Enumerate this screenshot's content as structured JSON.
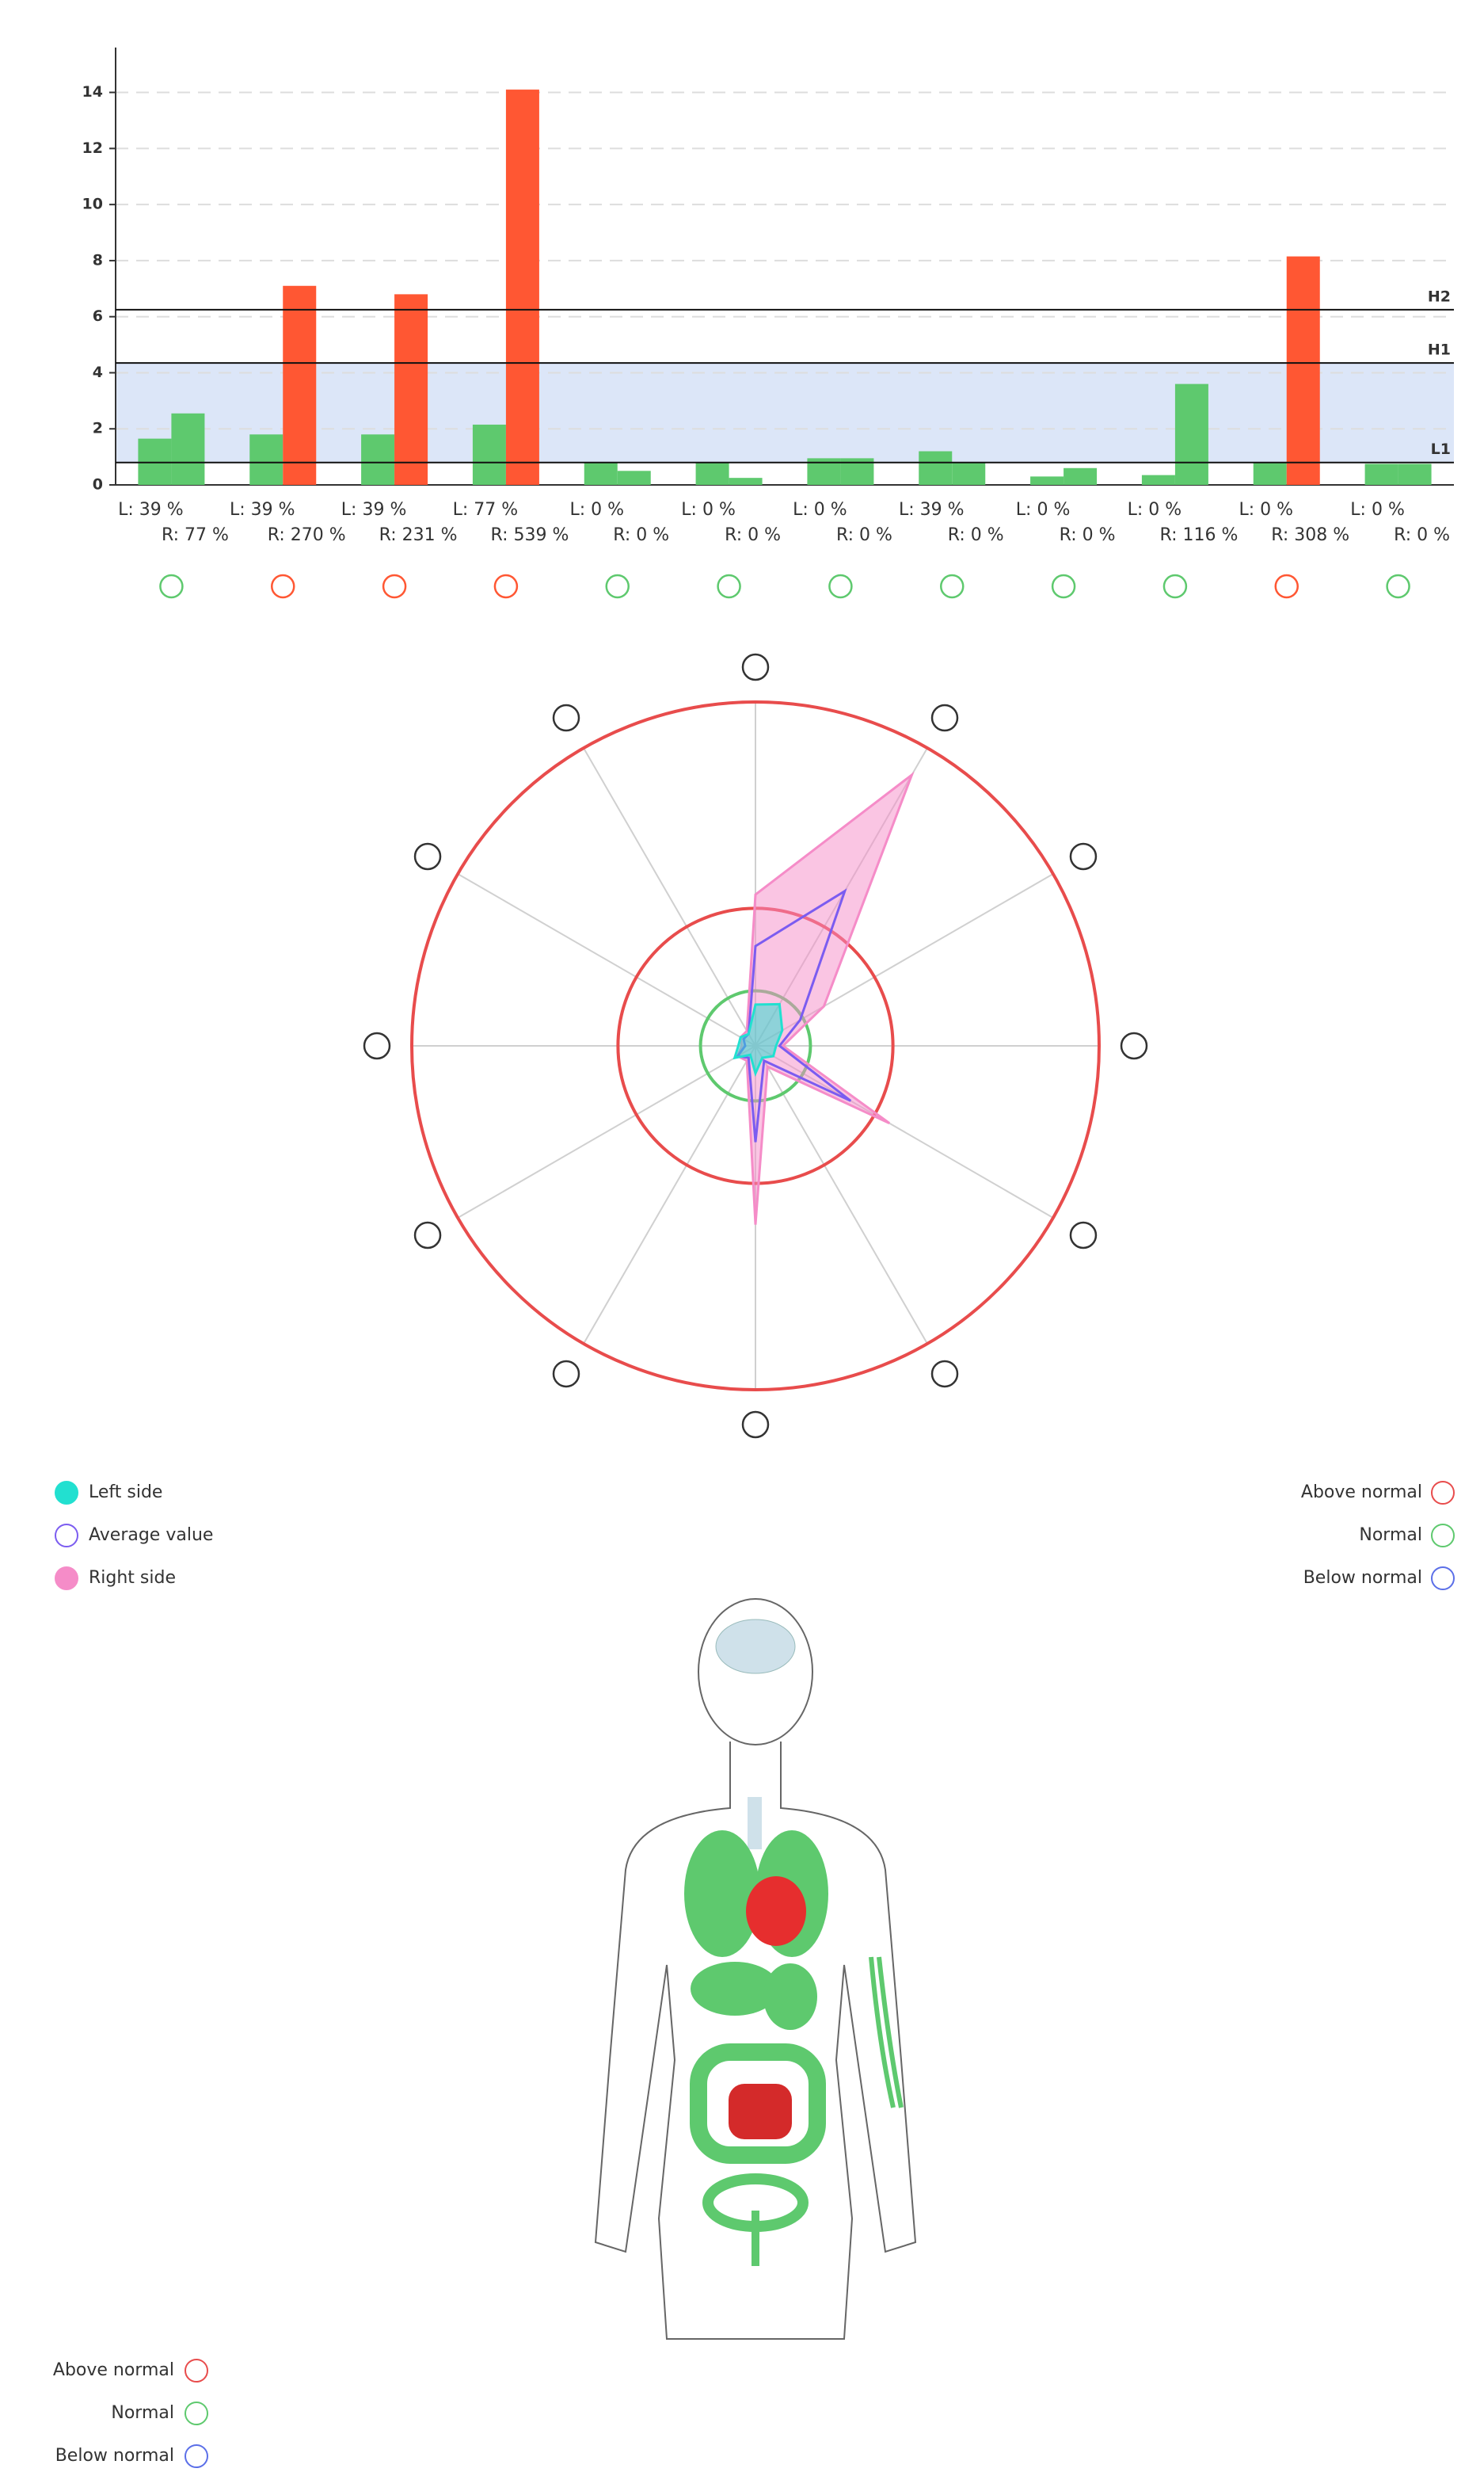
{
  "chart_data": [
    {
      "type": "bar",
      "categories": [
        null,
        null,
        null,
        null,
        null,
        null,
        null,
        null,
        null,
        null,
        null,
        null
      ],
      "series": [
        {
          "color": "#5ec96e",
          "values": [
            1.65,
            1.8,
            1.8,
            2.15,
            0.8,
            0.8,
            0.95,
            1.2,
            0.3,
            0.35,
            0.8,
            0.75
          ]
        },
        {
          "colors": [
            "#5ec96e",
            "#ff5733",
            "#ff5733",
            "#ff5733",
            "#5ec96e",
            "#5ec96e",
            "#5ec96e",
            "#5ec96e",
            "#5ec96e",
            "#5ec96e",
            "#ff5733",
            "#5ec96e"
          ],
          "values": [
            2.55,
            7.1,
            6.8,
            14.1,
            0.5,
            0.25,
            0.95,
            0.8,
            0.6,
            3.6,
            8.15,
            0.75
          ]
        }
      ],
      "left_annotations": [
        "L: 39 %",
        "L: 39 %",
        "L: 39 %",
        "L: 77 %",
        "L: 0 %",
        "L: 0 %",
        "L: 0 %",
        "L: 39 %",
        "L: 0 %",
        "L: 0 %",
        "L: 0 %",
        "L: 0 %"
      ],
      "right_annotations": [
        "R: 77 %",
        "R: 270 %",
        "R: 231 %",
        "R: 539 %",
        "R: 0 %",
        "R: 0 %",
        "R: 0 %",
        "R: 0 %",
        "R: 0 %",
        "R: 116 %",
        "R: 308 %",
        "R: 0 %"
      ],
      "ylim": [
        0,
        15.6
      ],
      "yticks": [
        0,
        2,
        4,
        6,
        8,
        10,
        12,
        14
      ],
      "grid": true,
      "reference_lines": [
        {
          "label": "H2",
          "value": 6.25
        },
        {
          "label": "H1",
          "value": 4.35
        },
        {
          "label": "L1",
          "value": 0.8
        }
      ],
      "band_color": "#dce6f8"
    },
    {
      "type": "radar",
      "categories": [
        null,
        null,
        null,
        null,
        null,
        null,
        null,
        null,
        null,
        null,
        null,
        null
      ],
      "rlim": [
        0,
        100
      ],
      "rings": [
        {
          "value": 16,
          "color": "#5ec96e"
        },
        {
          "value": 40,
          "color": "#e84c4c"
        },
        {
          "value": 100,
          "color": "#e84c4c"
        }
      ],
      "series": [
        {
          "name": "Left side",
          "color": "#22e0d0",
          "filled": true,
          "values": [
            12,
            14,
            9,
            6,
            6,
            4,
            8,
            3,
            7,
            5,
            5,
            4
          ]
        },
        {
          "name": "Average value",
          "color": "#7b5cf0",
          "filled": false,
          "values": [
            29,
            52,
            15,
            7,
            32,
            5,
            28,
            4,
            6,
            3,
            4,
            4
          ]
        },
        {
          "name": "Right side",
          "color": "#f58cc8",
          "filled": true,
          "values": [
            44,
            91,
            23,
            8,
            45,
            7,
            52,
            5,
            6,
            4,
            5,
            5
          ]
        }
      ]
    }
  ],
  "status_legend": [
    {
      "label": "Above normal",
      "color": "#e84c4c"
    },
    {
      "label": "Normal",
      "color": "#5ec96e"
    },
    {
      "label": "Below normal",
      "color": "#5b6fe8"
    }
  ],
  "body_legend": [
    {
      "label": "Above normal",
      "color": "#e84c4c"
    },
    {
      "label": "Normal",
      "color": "#5ec96e"
    },
    {
      "label": "Below normal",
      "color": "#5b6fe8"
    }
  ]
}
